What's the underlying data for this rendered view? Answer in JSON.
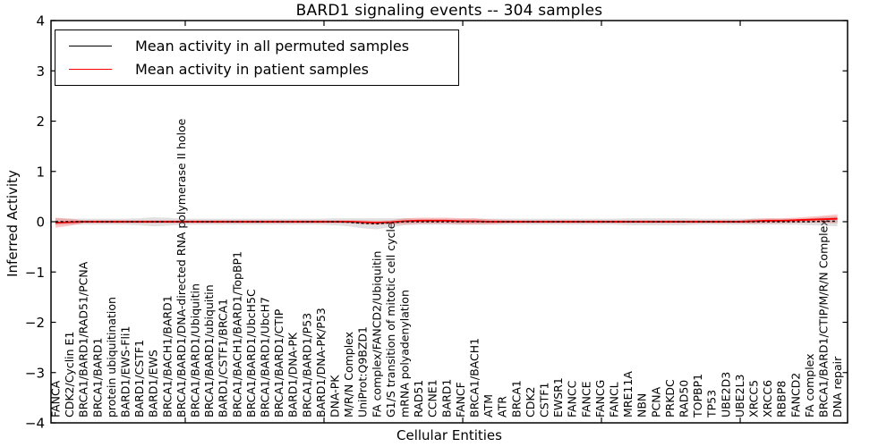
{
  "chart_data": {
    "type": "line",
    "title": "BARD1 signaling events -- 304 samples",
    "xlabel": "Cellular Entities",
    "ylabel": "Inferred Activity",
    "ylim": [
      -4,
      4
    ],
    "y_ticks": [
      4,
      3,
      2,
      1,
      0,
      -1,
      -2,
      -3,
      -4
    ],
    "y_tick_labels": [
      "4",
      "3",
      "2",
      "1",
      "0",
      "−1",
      "−2",
      "−3",
      "−4"
    ],
    "grid": false,
    "legend_position": "upper left",
    "legend": {
      "items": [
        {
          "label": "Mean activity in all permuted samples",
          "color": "#000000"
        },
        {
          "label": "Mean activity in patient samples",
          "color": "#ff0000"
        }
      ]
    },
    "categories": [
      "FANCA",
      "CDK2/Cyclin E1",
      "BRCA1/BARD1/RAD51/PCNA",
      "BRCA1/BARD1",
      "protein ubiquitination",
      "BARD1/EWS-Fli1",
      "BARD1/CSTF1",
      "BARD1/EWS",
      "BRCA1/BACH1/BARD1",
      "BRCA1/BARD1/DNA-directed RNA polymerase II holoe",
      "BRCA1/BARD1/Ubiquitin",
      "BRCA1/BARD1/ubiquitin",
      "BARD1/CSTF1/BRCA1",
      "BRCA1/BACH1/BARD1/TopBP1",
      "BRCA1/BARD1/UbcH5C",
      "BRCA1/BARD1/UbcH7",
      "BRCA1/BARD1/CTIP",
      "BARD1/DNA-PK",
      "BRCA1/BARD1/P53",
      "BARD1/DNA-PK/P53",
      "DNA-PK",
      "M/R/N Complex",
      "UniProt:Q9BZD1",
      "FA complex/FANCD2/Ubiquitin",
      "G1/S transition of mitotic cell cycle",
      "mRNA polyadenylation",
      "RAD51",
      "CCNE1",
      "BARD1",
      "FANCF",
      "BRCA1/BACH1",
      "ATM",
      "ATR",
      "BRCA1",
      "CDK2",
      "CSTF1",
      "EWSR1",
      "FANCC",
      "FANCE",
      "FANCG",
      "FANCL",
      "MRE11A",
      "NBN",
      "PCNA",
      "PRKDC",
      "RAD50",
      "TOPBP1",
      "TP53",
      "UBE2D3",
      "UBE2L3",
      "XRCC5",
      "XRCC6",
      "RBBP8",
      "FANCD2",
      "FA complex",
      "BRCA1/BARD1/CTIP/M/R/N Complex",
      "DNA repair"
    ],
    "series": [
      {
        "name": "Mean activity in all permuted samples",
        "color": "#000000",
        "values": [
          0,
          0,
          0,
          0,
          0,
          0,
          0,
          0,
          0,
          0,
          0,
          0,
          0,
          0,
          0,
          0,
          0,
          0,
          0,
          0,
          0,
          -0.01,
          -0.03,
          -0.04,
          -0.02,
          0,
          0,
          0,
          0,
          0,
          0,
          0,
          0,
          0,
          0,
          0,
          0,
          0,
          0,
          0,
          0,
          0,
          0,
          0,
          0,
          0,
          0,
          0,
          0,
          0,
          0,
          0,
          0,
          0,
          0,
          0.01,
          0.01
        ],
        "band_halfwidth": [
          0.07,
          0.06,
          0.06,
          0.06,
          0.06,
          0.06,
          0.07,
          0.09,
          0.08,
          0.06,
          0.06,
          0.06,
          0.06,
          0.06,
          0.06,
          0.06,
          0.06,
          0.06,
          0.06,
          0.06,
          0.07,
          0.08,
          0.1,
          0.11,
          0.09,
          0.07,
          0.06,
          0.06,
          0.06,
          0.06,
          0.06,
          0.06,
          0.06,
          0.06,
          0.06,
          0.06,
          0.06,
          0.06,
          0.06,
          0.06,
          0.06,
          0.07,
          0.07,
          0.07,
          0.07,
          0.07,
          0.06,
          0.06,
          0.06,
          0.06,
          0.06,
          0.06,
          0.06,
          0.06,
          0.07,
          0.09,
          0.1
        ],
        "band_color": "#999999",
        "band_opacity": 0.3
      },
      {
        "name": "Mean activity in patient samples",
        "color": "#ff0000",
        "values": [
          -0.02,
          -0.01,
          0,
          0,
          0,
          0,
          0,
          0,
          0,
          0,
          0,
          0,
          0,
          0,
          0,
          0,
          0,
          0,
          0,
          0,
          0,
          0,
          -0.01,
          -0.02,
          -0.01,
          0.01,
          0.02,
          0.02,
          0.02,
          0.01,
          0.01,
          0,
          0,
          0,
          0,
          0,
          0,
          0,
          0,
          0,
          0,
          0,
          0,
          0,
          0,
          0,
          0,
          0,
          0,
          0,
          0.01,
          0.02,
          0.02,
          0.03,
          0.04,
          0.05,
          0.06
        ],
        "band_halfwidth": [
          0.1,
          0.07,
          0.03,
          0.03,
          0.03,
          0.03,
          0.03,
          0.03,
          0.03,
          0.03,
          0.03,
          0.03,
          0.03,
          0.03,
          0.03,
          0.03,
          0.03,
          0.03,
          0.03,
          0.03,
          0.03,
          0.03,
          0.04,
          0.04,
          0.04,
          0.06,
          0.06,
          0.06,
          0.06,
          0.06,
          0.06,
          0.05,
          0.04,
          0.03,
          0.03,
          0.03,
          0.03,
          0.03,
          0.03,
          0.03,
          0.03,
          0.03,
          0.03,
          0.03,
          0.03,
          0.03,
          0.03,
          0.03,
          0.03,
          0.03,
          0.05,
          0.05,
          0.05,
          0.05,
          0.06,
          0.07,
          0.09
        ],
        "band_color": "#ff0000",
        "band_opacity": 0.22
      }
    ],
    "colors": {
      "axis": "#000000",
      "background": "#ffffff",
      "permuted_line": "#000000",
      "patient_line": "#ff0000"
    }
  }
}
